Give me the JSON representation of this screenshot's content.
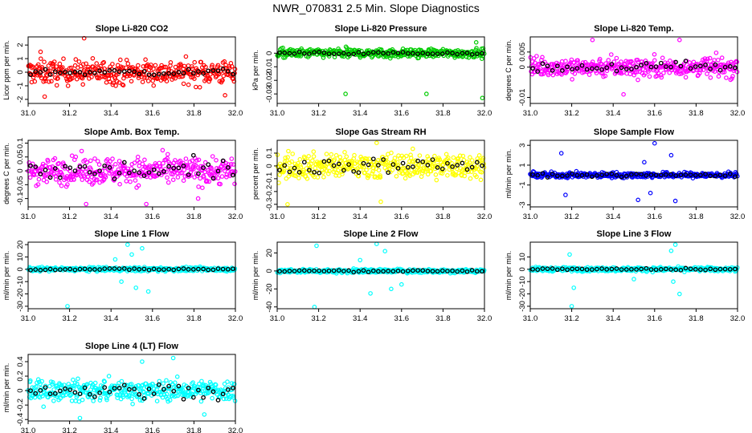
{
  "page_title": "NWR_070831  2.5 Min. Slope Diagnostics",
  "colors": {
    "red": "#ff0000",
    "green": "#00cc00",
    "magenta": "#ff00ff",
    "yellow": "#ffff00",
    "blue": "#0000ff",
    "cyan": "#00ffff",
    "black": "#000000"
  },
  "chart_data": [
    {
      "type": "scatter",
      "title": "Slope Li-820 CO2",
      "ylabel": "Licor ppm per min.",
      "color": "red",
      "xlim": [
        31.0,
        32.0
      ],
      "ylim": [
        -2.3,
        2.6
      ],
      "xticks": [
        31.0,
        31.2,
        31.4,
        31.6,
        31.8,
        32.0
      ],
      "yticks": [
        -2,
        -1,
        0,
        1,
        2
      ],
      "spread": 0.8,
      "highlight_spread": 0.25,
      "outliers": [
        [
          31.27,
          2.5
        ],
        [
          31.08,
          -1.8
        ],
        [
          31.95,
          -1.7
        ],
        [
          31.06,
          1.5
        ]
      ]
    },
    {
      "type": "scatter",
      "title": "Slope Li-820 Pressure",
      "ylabel": "kPa per min.",
      "color": "green",
      "xlim": [
        31.0,
        32.0
      ],
      "ylim": [
        -0.037,
        0.012
      ],
      "xticks": [
        31.0,
        31.2,
        31.4,
        31.6,
        31.8,
        32.0
      ],
      "yticks": [
        -0.03,
        -0.02,
        -0.01,
        0.0
      ],
      "spread": 0.003,
      "highlight_spread": 0.001,
      "outliers": [
        [
          31.33,
          -0.03
        ],
        [
          31.99,
          -0.033
        ],
        [
          31.72,
          -0.03
        ],
        [
          31.96,
          0.008
        ]
      ]
    },
    {
      "type": "scatter",
      "title": "Slope Li-820 Temp.",
      "ylabel": "degrees C per min.",
      "color": "magenta",
      "xlim": [
        31.0,
        32.0
      ],
      "ylim": [
        -0.012,
        0.01
      ],
      "xticks": [
        31.0,
        31.2,
        31.4,
        31.6,
        31.8,
        32.0
      ],
      "yticks": [
        -0.01,
        0.0,
        0.005
      ],
      "spread": 0.003,
      "highlight_spread": 0.002,
      "outliers": [
        [
          31.3,
          0.009
        ],
        [
          31.72,
          0.009
        ],
        [
          31.45,
          -0.009
        ]
      ]
    },
    {
      "type": "scatter",
      "title": "Slope Amb. Box Temp.",
      "ylabel": "degrees C per min.",
      "color": "magenta",
      "xlim": [
        31.0,
        32.0
      ],
      "ylim": [
        -0.13,
        0.11
      ],
      "xticks": [
        31.0,
        31.2,
        31.4,
        31.6,
        31.8,
        32.0
      ],
      "yticks": [
        -0.1,
        -0.05,
        0.0,
        0.05,
        0.1
      ],
      "spread": 0.045,
      "highlight_spread": 0.04,
      "outliers": [
        [
          31.28,
          -0.12
        ],
        [
          31.57,
          -0.12
        ],
        [
          31.82,
          -0.1
        ]
      ]
    },
    {
      "type": "scatter",
      "title": "Slope Gas Stream RH",
      "ylabel": "percent per min.",
      "color": "yellow",
      "xlim": [
        31.0,
        32.0
      ],
      "ylim": [
        -0.32,
        0.2
      ],
      "xticks": [
        31.0,
        31.2,
        31.4,
        31.6,
        31.8,
        32.0
      ],
      "yticks": [
        -0.3,
        -0.2,
        -0.1,
        0.0,
        0.1
      ],
      "spread": 0.09,
      "highlight_spread": 0.06,
      "outliers": [
        [
          31.05,
          -0.3
        ],
        [
          31.5,
          -0.28
        ],
        [
          31.48,
          0.18
        ]
      ]
    },
    {
      "type": "scatter",
      "title": "Slope Sample Flow",
      "ylabel": "ml/min per min.",
      "color": "blue",
      "xlim": [
        31.0,
        32.0
      ],
      "ylim": [
        -3.2,
        3.5
      ],
      "xticks": [
        31.0,
        31.2,
        31.4,
        31.6,
        31.8,
        32.0
      ],
      "yticks": [
        -3,
        -1,
        1,
        3
      ],
      "spread": 0.25,
      "highlight_spread": 0.15,
      "outliers": [
        [
          31.15,
          2.2
        ],
        [
          31.17,
          -2.0
        ],
        [
          31.52,
          -2.5
        ],
        [
          31.6,
          3.2
        ],
        [
          31.68,
          2.0
        ],
        [
          31.7,
          -2.6
        ],
        [
          31.55,
          1.3
        ],
        [
          31.58,
          -1.8
        ]
      ]
    },
    {
      "type": "scatter",
      "title": "Slope Line 1 Flow",
      "ylabel": "ml/min per min.",
      "color": "cyan",
      "xlim": [
        31.0,
        32.0
      ],
      "ylim": [
        -32,
        22
      ],
      "xticks": [
        31.0,
        31.2,
        31.4,
        31.6,
        31.8,
        32.0
      ],
      "yticks": [
        -30,
        -20,
        -10,
        0,
        10,
        20
      ],
      "spread": 1.5,
      "highlight_spread": 0.8,
      "outliers": [
        [
          31.19,
          -30
        ],
        [
          31.48,
          20
        ],
        [
          31.52,
          -15
        ],
        [
          31.55,
          17
        ],
        [
          31.45,
          -10
        ],
        [
          31.5,
          12
        ],
        [
          31.42,
          8
        ],
        [
          31.58,
          -18
        ]
      ]
    },
    {
      "type": "scatter",
      "title": "Slope Line 2 Flow",
      "ylabel": "ml/min per min.",
      "color": "cyan",
      "xlim": [
        31.0,
        32.0
      ],
      "ylim": [
        -42,
        32
      ],
      "xticks": [
        31.0,
        31.2,
        31.4,
        31.6,
        31.8,
        32.0
      ],
      "yticks": [
        -40,
        -20,
        0,
        20
      ],
      "spread": 2.0,
      "highlight_spread": 1.0,
      "outliers": [
        [
          31.18,
          -40
        ],
        [
          31.19,
          28
        ],
        [
          31.48,
          30
        ],
        [
          31.45,
          -25
        ],
        [
          31.52,
          22
        ],
        [
          31.55,
          -20
        ],
        [
          31.4,
          12
        ],
        [
          31.6,
          -15
        ]
      ]
    },
    {
      "type": "scatter",
      "title": "Slope Line 3 Flow",
      "ylabel": "ml/min per min.",
      "color": "cyan",
      "xlim": [
        31.0,
        32.0
      ],
      "ylim": [
        -32,
        22
      ],
      "xticks": [
        31.0,
        31.2,
        31.4,
        31.6,
        31.8,
        32.0
      ],
      "yticks": [
        -30,
        -20,
        -10,
        0,
        10
      ],
      "spread": 1.5,
      "highlight_spread": 0.8,
      "outliers": [
        [
          31.2,
          -30
        ],
        [
          31.19,
          12
        ],
        [
          31.7,
          20
        ],
        [
          31.72,
          -20
        ],
        [
          31.68,
          15
        ],
        [
          31.21,
          -15
        ],
        [
          31.5,
          -8
        ],
        [
          31.69,
          -10
        ]
      ]
    },
    {
      "type": "scatter",
      "title": "Slope Line 4 (LT) Flow",
      "ylabel": "ml/min per min.",
      "color": "cyan",
      "xlim": [
        31.0,
        32.0
      ],
      "ylim": [
        -0.42,
        0.5
      ],
      "xticks": [
        31.0,
        31.2,
        31.4,
        31.6,
        31.8,
        32.0
      ],
      "yticks": [
        -0.4,
        -0.2,
        0.0,
        0.2,
        0.4
      ],
      "spread": 0.13,
      "highlight_spread": 0.1,
      "outliers": [
        [
          31.7,
          0.45
        ],
        [
          31.25,
          -0.38
        ],
        [
          31.55,
          0.4
        ],
        [
          31.85,
          -0.33
        ]
      ]
    }
  ]
}
